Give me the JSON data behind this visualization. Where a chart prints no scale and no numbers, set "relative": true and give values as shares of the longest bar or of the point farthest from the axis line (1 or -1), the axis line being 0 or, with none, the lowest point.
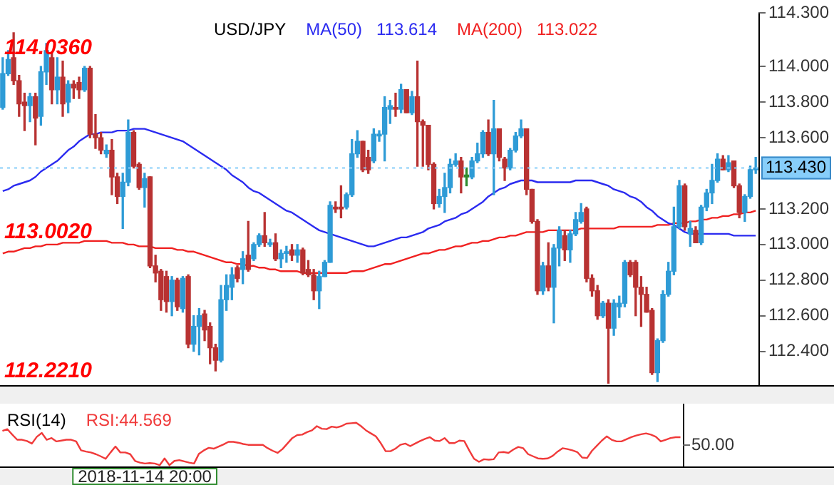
{
  "chart_data": [
    {
      "type": "candlestick",
      "title": "USD/JPY",
      "marker": "none",
      "grid": false,
      "tick_labels": "y",
      "categories": [
        null,
        null,
        null,
        null,
        null,
        null,
        null,
        null,
        null,
        null,
        null,
        null,
        null,
        null,
        null,
        null,
        null,
        null,
        null,
        null,
        null,
        null,
        null,
        null,
        null,
        null,
        null,
        null,
        null,
        null,
        null,
        null,
        null,
        null,
        null,
        null,
        null,
        null,
        null,
        null,
        null,
        null,
        null,
        null,
        null,
        null,
        null,
        null,
        null,
        null,
        null,
        null,
        null,
        null,
        null,
        null,
        null,
        null,
        null,
        null,
        null,
        null,
        null,
        null,
        null,
        null,
        null,
        null,
        null,
        null,
        null,
        null,
        null,
        null,
        null,
        null,
        null,
        null,
        null,
        null,
        null,
        null,
        null,
        null,
        null,
        null,
        null,
        null,
        null,
        null,
        null,
        null,
        null,
        null,
        null,
        null,
        null,
        null,
        null,
        null,
        null,
        null,
        null,
        null,
        null,
        null,
        null,
        null,
        null,
        null,
        null,
        null,
        null,
        null,
        null,
        null,
        null,
        null,
        null,
        null,
        null,
        null,
        null,
        null,
        null,
        null,
        null,
        null,
        null,
        null,
        null,
        null,
        null,
        null,
        null,
        null,
        null,
        null,
        null
      ],
      "ohlc": [
        [
          113.77,
          114.05,
          113.76,
          113.96
        ],
        [
          113.96,
          114.09,
          113.95,
          114.04
        ],
        [
          114.05,
          114.19,
          113.9,
          113.92
        ],
        [
          113.92,
          113.95,
          113.72,
          113.79
        ],
        [
          113.8,
          113.85,
          113.64,
          113.78
        ],
        [
          113.78,
          113.85,
          113.69,
          113.83
        ],
        [
          113.83,
          113.85,
          113.56,
          113.71
        ],
        [
          113.72,
          114.0,
          113.67,
          113.97
        ],
        [
          113.97,
          114.13,
          113.9,
          114.09
        ],
        [
          114.05,
          114.08,
          113.79,
          113.87
        ],
        [
          113.87,
          114.05,
          113.79,
          113.94
        ],
        [
          113.94,
          114.03,
          113.72,
          113.79
        ],
        [
          113.8,
          113.92,
          113.74,
          113.9
        ],
        [
          113.9,
          113.92,
          113.82,
          113.88
        ],
        [
          113.91,
          113.94,
          113.82,
          113.87
        ],
        [
          113.87,
          114.0,
          113.86,
          113.99
        ],
        [
          113.99,
          114.0,
          113.6,
          113.62
        ],
        [
          113.62,
          113.73,
          113.54,
          113.6
        ],
        [
          113.6,
          113.63,
          113.51,
          113.53
        ],
        [
          113.51,
          113.56,
          113.49,
          113.53
        ],
        [
          113.53,
          113.59,
          113.28,
          113.38
        ],
        [
          113.38,
          113.4,
          113.23,
          113.27
        ],
        [
          113.27,
          113.4,
          113.09,
          113.35
        ],
        [
          113.35,
          113.7,
          113.33,
          113.63
        ],
        [
          113.63,
          113.64,
          113.43,
          113.44
        ],
        [
          113.45,
          113.46,
          113.31,
          113.32
        ],
        [
          113.32,
          113.4,
          113.21,
          113.37
        ],
        [
          113.38,
          113.38,
          112.87,
          112.88
        ],
        [
          112.88,
          112.94,
          112.79,
          112.84
        ],
        [
          112.85,
          112.86,
          112.63,
          112.69
        ],
        [
          112.82,
          112.85,
          112.62,
          112.68
        ],
        [
          112.68,
          112.82,
          112.6,
          112.8
        ],
        [
          112.8,
          112.81,
          112.63,
          112.65
        ],
        [
          112.64,
          112.82,
          112.62,
          112.81
        ],
        [
          112.82,
          112.83,
          112.42,
          112.44
        ],
        [
          112.44,
          112.6,
          112.4,
          112.54
        ],
        [
          112.54,
          112.64,
          112.38,
          112.6
        ],
        [
          112.61,
          112.63,
          112.46,
          112.52
        ],
        [
          112.54,
          112.56,
          112.33,
          112.42
        ],
        [
          112.42,
          112.44,
          112.29,
          112.35
        ],
        [
          112.35,
          112.77,
          112.34,
          112.69
        ],
        [
          112.69,
          112.83,
          112.63,
          112.77
        ],
        [
          112.76,
          112.87,
          112.69,
          112.83
        ],
        [
          112.87,
          112.88,
          112.79,
          112.81
        ],
        [
          112.86,
          112.96,
          112.78,
          112.92
        ],
        [
          112.94,
          113.13,
          112.85,
          112.86
        ],
        [
          112.92,
          113.01,
          112.91,
          113.0
        ],
        [
          113.0,
          113.06,
          112.99,
          113.05
        ],
        [
          113.05,
          113.18,
          112.99,
          113.01
        ],
        [
          113.0,
          113.03,
          112.99,
          113.01
        ],
        [
          113.01,
          113.06,
          112.91,
          112.92
        ],
        [
          112.92,
          112.97,
          112.87,
          112.95
        ],
        [
          112.95,
          112.99,
          112.9,
          112.96
        ],
        [
          112.97,
          113.0,
          112.91,
          112.94
        ],
        [
          112.94,
          113.0,
          112.9,
          112.97
        ],
        [
          112.97,
          112.98,
          112.83,
          112.84
        ],
        [
          112.86,
          112.91,
          112.82,
          112.83
        ],
        [
          112.83,
          112.86,
          112.69,
          112.74
        ],
        [
          112.74,
          112.85,
          112.64,
          112.82
        ],
        [
          112.82,
          112.91,
          112.82,
          112.9
        ],
        [
          112.9,
          113.24,
          112.9,
          113.22
        ],
        [
          113.21,
          113.24,
          113.18,
          113.2
        ],
        [
          113.21,
          113.33,
          113.15,
          113.2
        ],
        [
          113.21,
          113.29,
          113.2,
          113.28
        ],
        [
          113.28,
          113.59,
          113.27,
          113.51
        ],
        [
          113.51,
          113.64,
          113.49,
          113.58
        ],
        [
          113.58,
          113.58,
          113.41,
          113.42
        ],
        [
          113.49,
          113.53,
          113.4,
          113.42
        ],
        [
          113.47,
          113.65,
          113.46,
          113.62
        ],
        [
          113.61,
          113.64,
          113.58,
          113.62
        ],
        [
          113.62,
          113.83,
          113.47,
          113.77
        ],
        [
          113.76,
          113.81,
          113.68,
          113.78
        ],
        [
          113.77,
          113.85,
          113.72,
          113.76
        ],
        [
          113.76,
          113.9,
          113.74,
          113.87
        ],
        [
          113.87,
          113.87,
          113.74,
          113.74
        ],
        [
          113.74,
          113.86,
          113.73,
          113.83
        ],
        [
          113.83,
          114.03,
          113.44,
          113.69
        ],
        [
          113.69,
          113.7,
          113.44,
          113.67
        ],
        [
          113.67,
          113.67,
          113.42,
          113.45
        ],
        [
          113.45,
          113.46,
          113.2,
          113.23
        ],
        [
          113.23,
          113.31,
          113.21,
          113.27
        ],
        [
          113.27,
          113.4,
          113.18,
          113.32
        ],
        [
          113.32,
          113.48,
          113.29,
          113.45
        ],
        [
          113.45,
          113.51,
          113.44,
          113.47
        ],
        [
          113.47,
          113.49,
          113.29,
          113.38
        ],
        [
          113.38,
          113.43,
          113.33,
          113.39
        ],
        [
          113.38,
          113.49,
          113.37,
          113.47
        ],
        [
          113.47,
          113.57,
          113.46,
          113.51
        ],
        [
          113.51,
          113.64,
          113.49,
          113.63
        ],
        [
          113.63,
          113.7,
          113.5,
          113.51
        ],
        [
          113.51,
          113.81,
          113.28,
          113.65
        ],
        [
          113.65,
          113.65,
          113.47,
          113.49
        ],
        [
          113.48,
          113.49,
          113.36,
          113.43
        ],
        [
          113.43,
          113.54,
          113.42,
          113.53
        ],
        [
          113.53,
          113.63,
          113.52,
          113.61
        ],
        [
          113.61,
          113.7,
          113.6,
          113.65
        ],
        [
          113.65,
          113.65,
          113.28,
          113.31
        ],
        [
          113.31,
          113.31,
          113.12,
          113.13
        ],
        [
          113.13,
          113.14,
          112.72,
          112.74
        ],
        [
          112.74,
          112.9,
          112.72,
          112.88
        ],
        [
          112.88,
          113.01,
          112.74,
          112.76
        ],
        [
          112.76,
          113.0,
          112.56,
          112.98
        ],
        [
          112.98,
          113.1,
          112.88,
          113.08
        ],
        [
          113.05,
          113.08,
          112.91,
          112.97
        ],
        [
          112.97,
          113.08,
          112.9,
          113.06
        ],
        [
          113.06,
          113.18,
          113.05,
          113.14
        ],
        [
          113.13,
          113.23,
          113.12,
          113.18
        ],
        [
          113.2,
          113.21,
          112.79,
          112.81
        ],
        [
          112.81,
          112.83,
          112.71,
          112.74
        ],
        [
          112.74,
          112.77,
          112.58,
          112.6
        ],
        [
          112.6,
          112.68,
          112.59,
          112.67
        ],
        [
          112.67,
          112.69,
          112.221,
          112.53
        ],
        [
          112.53,
          112.69,
          112.49,
          112.67
        ],
        [
          112.65,
          112.71,
          112.59,
          112.67
        ],
        [
          112.67,
          112.91,
          112.65,
          112.9
        ],
        [
          112.9,
          112.91,
          112.82,
          112.83
        ],
        [
          112.9,
          112.91,
          112.6,
          112.76
        ],
        [
          112.76,
          112.82,
          112.54,
          112.72
        ],
        [
          112.72,
          112.76,
          112.62,
          112.62
        ],
        [
          112.63,
          112.64,
          112.27,
          112.28
        ],
        [
          112.28,
          112.47,
          112.23,
          112.46
        ],
        [
          112.46,
          112.74,
          112.45,
          112.72
        ],
        [
          112.72,
          112.9,
          112.71,
          112.85
        ],
        [
          112.85,
          113.21,
          112.83,
          113.1
        ],
        [
          113.1,
          113.36,
          113.09,
          113.33
        ],
        [
          113.33,
          113.34,
          113.08,
          113.1
        ],
        [
          113.06,
          113.13,
          112.99,
          113.09
        ],
        [
          113.08,
          113.1,
          113.01,
          113.01
        ],
        [
          113.01,
          113.22,
          113.0,
          113.21
        ],
        [
          113.21,
          113.31,
          113.19,
          113.29
        ],
        [
          113.29,
          113.45,
          113.23,
          113.36
        ],
        [
          113.36,
          113.51,
          113.35,
          113.48
        ],
        [
          113.48,
          113.5,
          113.42,
          113.42
        ],
        [
          113.42,
          113.5,
          113.41,
          113.46
        ],
        [
          113.47,
          113.47,
          113.32,
          113.33
        ],
        [
          113.33,
          113.34,
          113.15,
          113.18
        ],
        [
          113.18,
          113.28,
          113.13,
          113.27
        ],
        [
          113.27,
          113.44,
          113.26,
          113.42
        ],
        [
          113.42,
          113.49,
          113.4,
          113.43
        ]
      ],
      "colors": [
        "#2e9bd6",
        "#2e9bd6",
        "#b83232",
        "#b83232",
        "#b83232",
        "#2e9bd6",
        "#b83232",
        "#2e9bd6",
        "#2e9bd6",
        "#b83232",
        "#2e9bd6",
        "#b83232",
        "#2e9bd6",
        "#b83232",
        "#b83232",
        "#2e9bd6",
        "#b83232",
        "#b83232",
        "#b83232",
        "#2e9bd6",
        "#b83232",
        "#b83232",
        "#2e9bd6",
        "#2e9bd6",
        "#b83232",
        "#b83232",
        "#2e9bd6",
        "#b83232",
        "#b83232",
        "#b83232",
        "#b83232",
        "#2e9bd6",
        "#b83232",
        "#2e9bd6",
        "#b83232",
        "#2e9bd6",
        "#2e9bd6",
        "#b83232",
        "#b83232",
        "#b83232",
        "#2e9bd6",
        "#2e9bd6",
        "#2e9bd6",
        "#b83232",
        "#2e9bd6",
        "#b83232",
        "#2e9bd6",
        "#2e9bd6",
        "#b83232",
        "#2e9bd6",
        "#b83232",
        "#2e9bd6",
        "#2e9bd6",
        "#b83232",
        "#2e9bd6",
        "#b83232",
        "#b83232",
        "#b83232",
        "#2e9bd6",
        "#2e9bd6",
        "#2e9bd6",
        "#b83232",
        "#b83232",
        "#2e9bd6",
        "#2e9bd6",
        "#2e9bd6",
        "#b83232",
        "#b83232",
        "#2e9bd6",
        "#2e9bd6",
        "#2e9bd6",
        "#2e9bd6",
        "#b83232",
        "#2e9bd6",
        "#b83232",
        "#2e9bd6",
        "#b83232",
        "#b83232",
        "#b83232",
        "#b83232",
        "#2e9bd6",
        "#2e9bd6",
        "#2e9bd6",
        "#2e9bd6",
        "#b83232",
        "#2e8b2e",
        "#2e9bd6",
        "#2e9bd6",
        "#2e9bd6",
        "#b83232",
        "#2e9bd6",
        "#b83232",
        "#b83232",
        "#2e9bd6",
        "#2e9bd6",
        "#2e9bd6",
        "#b83232",
        "#b83232",
        "#b83232",
        "#2e9bd6",
        "#b83232",
        "#2e9bd6",
        "#2e9bd6",
        "#b83232",
        "#2e9bd6",
        "#2e9bd6",
        "#2e9bd6",
        "#b83232",
        "#b83232",
        "#b83232",
        "#2e9bd6",
        "#b83232",
        "#2e9bd6",
        "#2e9bd6",
        "#2e9bd6",
        "#b83232",
        "#b83232",
        "#b83232",
        "#b83232",
        "#b83232",
        "#2e9bd6",
        "#2e9bd6",
        "#2e9bd6",
        "#2e9bd6",
        "#2e9bd6",
        "#b83232",
        "#2e9bd6",
        "#b83232",
        "#2e9bd6",
        "#2e9bd6",
        "#2e9bd6",
        "#2e9bd6",
        "#b83232",
        "#2e9bd6",
        "#b83232",
        "#b83232",
        "#2e9bd6",
        "#2e9bd6",
        "#2e9bd6"
      ],
      "series": [
        {
          "name": "MA(50)",
          "type": "line",
          "color": "#2b2bf0",
          "values": [
            113.3,
            113.31,
            113.33,
            113.34,
            113.35,
            113.36,
            113.38,
            113.41,
            113.43,
            113.45,
            113.47,
            113.5,
            113.53,
            113.55,
            113.58,
            113.6,
            113.62,
            113.62,
            113.63,
            113.63,
            113.63,
            113.64,
            113.64,
            113.64,
            113.65,
            113.65,
            113.65,
            113.64,
            113.63,
            113.62,
            113.61,
            113.6,
            113.59,
            113.58,
            113.56,
            113.54,
            113.52,
            113.5,
            113.48,
            113.46,
            113.44,
            113.42,
            113.39,
            113.37,
            113.35,
            113.32,
            113.3,
            113.29,
            113.27,
            113.25,
            113.23,
            113.21,
            113.19,
            113.18,
            113.16,
            113.14,
            113.12,
            113.1,
            113.08,
            113.07,
            113.06,
            113.05,
            113.04,
            113.03,
            113.02,
            113.01,
            113.0,
            112.99,
            112.99,
            113.0,
            113.01,
            113.02,
            113.03,
            113.04,
            113.04,
            113.05,
            113.06,
            113.07,
            113.09,
            113.1,
            113.11,
            113.13,
            113.14,
            113.15,
            113.17,
            113.18,
            113.2,
            113.22,
            113.24,
            113.27,
            113.29,
            113.31,
            113.32,
            113.34,
            113.35,
            113.36,
            113.36,
            113.36,
            113.35,
            113.35,
            113.35,
            113.35,
            113.35,
            113.35,
            113.35,
            113.36,
            113.36,
            113.36,
            113.36,
            113.35,
            113.34,
            113.33,
            113.31,
            113.3,
            113.29,
            113.27,
            113.26,
            113.24,
            113.21,
            113.19,
            113.16,
            113.14,
            113.12,
            113.11,
            113.09,
            113.07,
            113.06,
            113.06,
            113.06,
            113.06,
            113.06,
            113.06,
            113.06,
            113.06,
            113.05,
            113.05,
            113.05,
            113.05,
            113.05
          ]
        },
        {
          "name": "MA(200)",
          "type": "line",
          "color": "#f02020",
          "values": [
            112.95,
            112.96,
            112.96,
            112.97,
            112.98,
            112.98,
            112.99,
            112.99,
            113.0,
            113.0,
            113.0,
            113.01,
            113.01,
            113.01,
            113.01,
            113.02,
            113.02,
            113.02,
            113.02,
            113.02,
            113.01,
            113.01,
            113.01,
            113.0,
            113.0,
            112.99,
            112.99,
            112.99,
            112.98,
            112.98,
            112.98,
            112.98,
            112.97,
            112.97,
            112.96,
            112.96,
            112.95,
            112.94,
            112.93,
            112.92,
            112.91,
            112.9,
            112.9,
            112.89,
            112.89,
            112.88,
            112.88,
            112.87,
            112.87,
            112.86,
            112.86,
            112.85,
            112.85,
            112.85,
            112.85,
            112.84,
            112.84,
            112.84,
            112.84,
            112.84,
            112.84,
            112.84,
            112.84,
            112.84,
            112.85,
            112.85,
            112.85,
            112.86,
            112.87,
            112.88,
            112.89,
            112.89,
            112.9,
            112.91,
            112.92,
            112.93,
            112.94,
            112.95,
            112.95,
            112.96,
            112.97,
            112.97,
            112.98,
            112.99,
            112.99,
            113.0,
            113.01,
            113.01,
            113.02,
            113.02,
            113.03,
            113.04,
            113.04,
            113.05,
            113.05,
            113.06,
            113.07,
            113.07,
            113.07,
            113.07,
            113.08,
            113.08,
            113.08,
            113.08,
            113.08,
            113.08,
            113.09,
            113.09,
            113.09,
            113.09,
            113.09,
            113.09,
            113.09,
            113.1,
            113.1,
            113.1,
            113.1,
            113.1,
            113.1,
            113.1,
            113.11,
            113.11,
            113.11,
            113.12,
            113.12,
            113.12,
            113.13,
            113.13,
            113.14,
            113.14,
            113.15,
            113.15,
            113.16,
            113.16,
            113.17,
            113.17,
            113.18,
            113.18,
            113.19
          ]
        }
      ],
      "annotations": [
        {
          "text": "114.0360",
          "y": 114.036
        },
        {
          "text": "113.0020",
          "y": 113.002
        },
        "113.614",
        "113.022",
        "112.2210"
      ],
      "ref_lines": [
        {
          "axis": "y",
          "value": 113.43,
          "label": "113.430",
          "color": "#87cefa"
        }
      ],
      "ylim": [
        112.21,
        114.3
      ],
      "yticks": [
        {
          "value": 114.3,
          "label": "114.300"
        },
        {
          "value": 114,
          "label": "114.000"
        },
        {
          "value": 113.8,
          "label": "113.800"
        },
        {
          "value": 113.6,
          "label": "113.600"
        },
        {
          "value": 113.2,
          "label": "113.200"
        },
        {
          "value": 113,
          "label": "113.000"
        },
        {
          "value": 112.8,
          "label": "112.800"
        },
        {
          "value": 112.6,
          "label": "112.600"
        },
        {
          "value": 112.4,
          "label": "112.400"
        }
      ]
    },
    {
      "type": "line",
      "title": "RSI(14)",
      "marker": "none",
      "grid": false,
      "relative": true,
      "tick_labels": false,
      "categories": [
        null,
        null,
        null,
        null,
        null,
        null,
        null,
        null,
        null,
        null,
        null,
        null,
        null,
        null,
        null,
        null,
        null,
        null,
        null,
        null,
        null,
        null,
        null,
        null,
        null,
        null,
        null,
        null,
        null,
        null,
        null,
        null,
        null,
        null,
        null,
        null,
        null,
        null,
        null,
        null,
        null,
        null,
        null,
        null,
        null,
        null,
        null,
        null,
        null,
        null,
        null,
        null,
        null,
        null,
        null,
        null,
        null,
        null,
        null,
        null,
        null,
        null,
        null,
        null,
        null,
        null,
        null,
        null,
        null,
        null,
        null,
        null,
        null,
        null,
        null,
        null,
        null,
        null,
        null,
        null,
        null,
        null,
        null,
        null,
        null,
        null,
        null,
        null,
        null,
        null,
        null,
        null,
        null,
        null,
        null,
        null,
        null,
        null,
        null,
        null,
        null,
        null,
        null,
        null,
        null,
        null,
        null,
        null,
        null,
        null,
        null,
        null,
        null,
        null,
        null,
        null,
        null,
        null,
        null,
        null,
        null,
        null,
        null,
        null,
        null,
        null,
        null,
        null,
        null,
        null,
        null,
        null,
        null,
        null,
        null,
        null,
        null,
        null,
        null
      ],
      "series": [
        {
          "name": "RSI:44.569",
          "color": "#f03a3a",
          "values": [
            0.81,
            0.85,
            0.72,
            0.6,
            0.6,
            0.57,
            0.51,
            0.67,
            0.76,
            0.6,
            0.64,
            0.56,
            0.58,
            0.6,
            0.6,
            0.56,
            0.35,
            0.32,
            0.3,
            0.26,
            0.21,
            0.15,
            0.3,
            0.44,
            0.3,
            0.3,
            0.26,
            0.1,
            0.06,
            0.04,
            0.05,
            0.04,
            0,
            0.16,
            0,
            0.1,
            0.12,
            0.09,
            0.06,
            0.04,
            0.27,
            0.35,
            0.41,
            0.39,
            0.44,
            0.49,
            0.55,
            0.55,
            0.53,
            0.5,
            0.48,
            0.48,
            0.48,
            0.48,
            0.4,
            0.34,
            0.29,
            0.38,
            0.51,
            0.64,
            0.71,
            0.72,
            0.78,
            0.82,
            0.92,
            0.86,
            0.85,
            0.91,
            0.89,
            0.92,
            0.98,
            0.99,
            1,
            0.92,
            0.82,
            0.75,
            0.68,
            0.52,
            0.33,
            0.33,
            0.39,
            0.48,
            0.51,
            0.45,
            0.51,
            0.57,
            0.62,
            0.66,
            0.58,
            0.57,
            0.64,
            0.52,
            0.52,
            0.58,
            0.57,
            0.35,
            0.15,
            0.08,
            0.14,
            0.13,
            0.14,
            0.3,
            0.31,
            0.29,
            0.37,
            0.43,
            0.4,
            0.26,
            0.21,
            0.16,
            0.15,
            0.16,
            0.22,
            0.32,
            0.4,
            0.38,
            0.35,
            0.31,
            0.18,
            0.17,
            0.34,
            0.46,
            0.58,
            0.68,
            0.6,
            0.56,
            0.56,
            0.61,
            0.66,
            0.7,
            0.73,
            0.75,
            0.72,
            0.67,
            0.56,
            0.6,
            0.64,
            0.66,
            0.66
          ]
        }
      ],
      "annotations": [
        "2018-11-14 20:00",
        "50.00"
      ]
    }
  ]
}
